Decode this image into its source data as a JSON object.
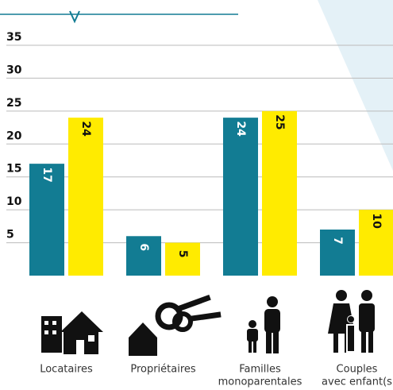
{
  "chart_data": {
    "type": "bar",
    "categories": [
      [
        "Locataires"
      ],
      [
        "Propriétaires"
      ],
      [
        "Familles",
        "monoparentales"
      ],
      [
        "Couples",
        "avec enfant(s"
      ]
    ],
    "series": [
      {
        "color": "#127c93",
        "values": [
          17,
          6,
          24,
          7
        ]
      },
      {
        "color": "#ffeb00",
        "values": [
          24,
          5,
          25,
          10
        ]
      }
    ],
    "ylim": [
      0,
      35
    ],
    "yticks": [
      5,
      10,
      15,
      20,
      25,
      30,
      35
    ],
    "grid": true
  }
}
